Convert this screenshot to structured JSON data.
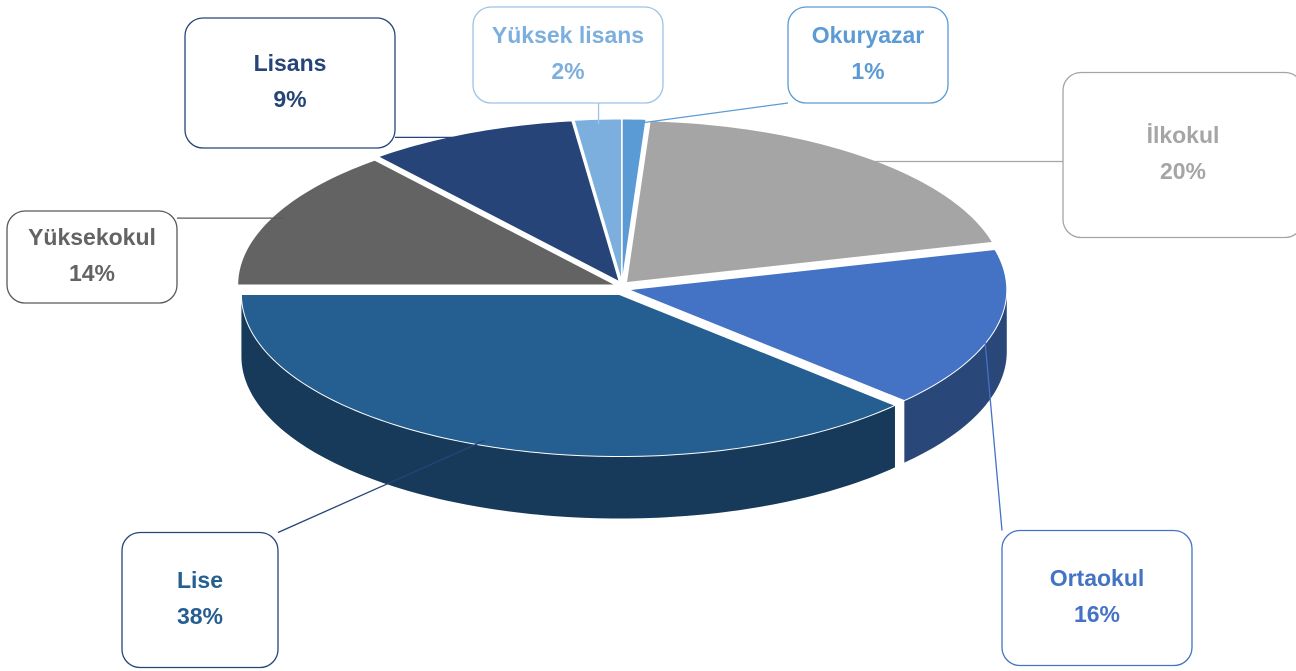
{
  "chart_data": {
    "type": "pie",
    "categories": [
      "Okuryazar",
      "İlkokul",
      "Ortaokul",
      "Lise",
      "Yüksekokul",
      "Lisans",
      "Yüksek lisans"
    ],
    "values": [
      1,
      20,
      16,
      38,
      14,
      9,
      2
    ],
    "value_labels": [
      "1%",
      "20%",
      "16%",
      "38%",
      "14%",
      "9%",
      "2%"
    ],
    "colors": [
      "#5b9bd5",
      "#a5a5a5",
      "#4472c4",
      "#255e91",
      "#636363",
      "#264478",
      "#7cafdd"
    ]
  }
}
